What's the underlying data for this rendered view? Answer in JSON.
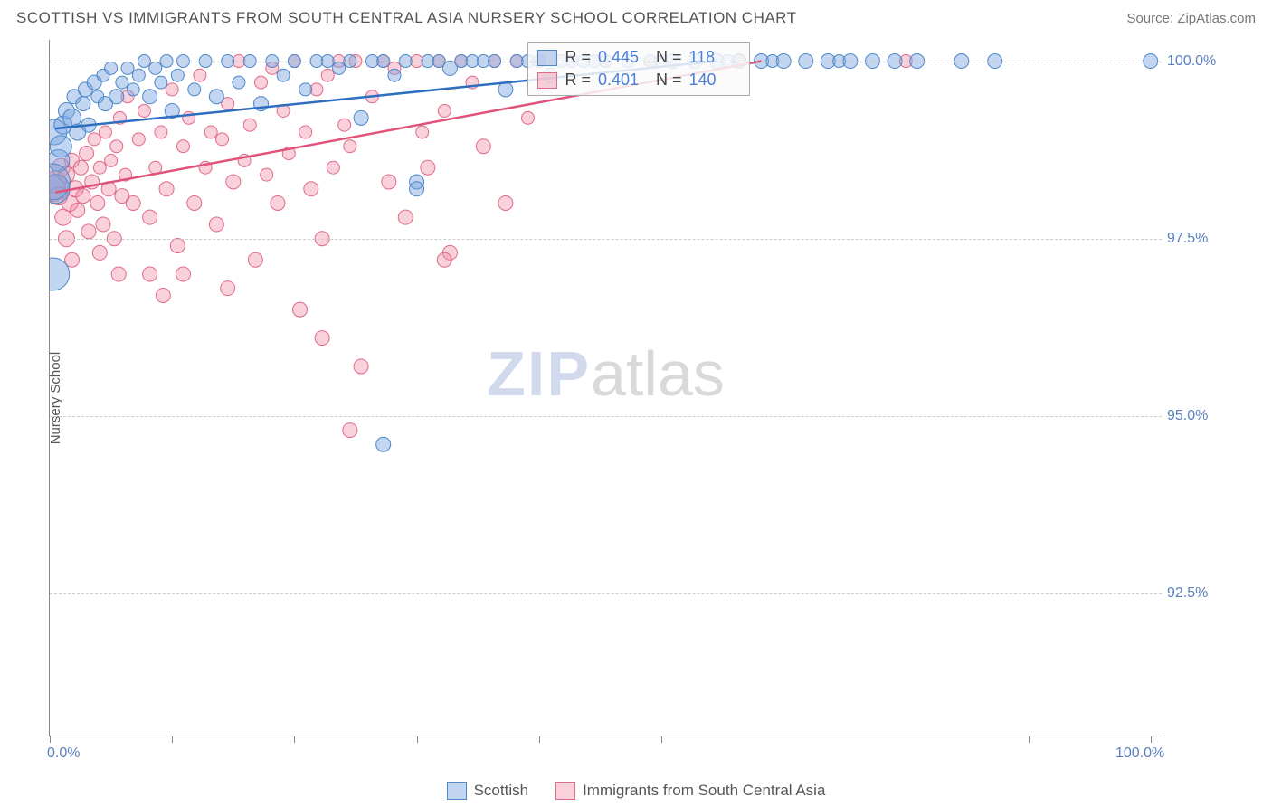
{
  "header": {
    "title": "SCOTTISH VS IMMIGRANTS FROM SOUTH CENTRAL ASIA NURSERY SCHOOL CORRELATION CHART",
    "source": "Source: ZipAtlas.com"
  },
  "axes": {
    "ylabel": "Nursery School",
    "x_min": 0,
    "x_max": 100,
    "y_min": 90.5,
    "y_max": 100.3,
    "y_ticks": [
      92.5,
      95.0,
      97.5,
      100.0
    ],
    "y_tick_labels": [
      "92.5%",
      "95.0%",
      "97.5%",
      "100.0%"
    ],
    "x_ticks": [
      0,
      11,
      22,
      33,
      44,
      55,
      88,
      99
    ],
    "x_left_label": "0.0%",
    "x_right_label": "100.0%",
    "tick_label_color": "#5a7fbf",
    "grid_color": "#cccccc"
  },
  "series": {
    "scottish": {
      "label": "Scottish",
      "fill": "rgba(120,165,225,0.45)",
      "stroke": "#4d87c7",
      "line_color": "#2d6ebf",
      "r_value": "0.445",
      "n_value": "118",
      "trend": {
        "x1": 0.5,
        "y1": 99.05,
        "x2": 60,
        "y2": 100.0
      },
      "points": [
        [
          0.3,
          97.0,
          18
        ],
        [
          0.5,
          98.2,
          16
        ],
        [
          0.4,
          99.0,
          14
        ],
        [
          0.8,
          98.6,
          12
        ],
        [
          1.2,
          99.1,
          10
        ],
        [
          1.0,
          98.8,
          12
        ],
        [
          1.5,
          99.3,
          9
        ],
        [
          2.0,
          99.2,
          10
        ],
        [
          2.2,
          99.5,
          8
        ],
        [
          2.5,
          99.0,
          9
        ],
        [
          3.0,
          99.4,
          8
        ],
        [
          3.2,
          99.6,
          8
        ],
        [
          3.5,
          99.1,
          8
        ],
        [
          4.0,
          99.7,
          8
        ],
        [
          4.3,
          99.5,
          7
        ],
        [
          4.8,
          99.8,
          7
        ],
        [
          5.0,
          99.4,
          8
        ],
        [
          5.5,
          99.9,
          7
        ],
        [
          6.0,
          99.5,
          8
        ],
        [
          6.5,
          99.7,
          7
        ],
        [
          7.0,
          99.9,
          7
        ],
        [
          7.5,
          99.6,
          7
        ],
        [
          8.0,
          99.8,
          7
        ],
        [
          8.5,
          100.0,
          7
        ],
        [
          9.0,
          99.5,
          8
        ],
        [
          9.5,
          99.9,
          7
        ],
        [
          10,
          99.7,
          7
        ],
        [
          10.5,
          100.0,
          7
        ],
        [
          11,
          99.3,
          8
        ],
        [
          11.5,
          99.8,
          7
        ],
        [
          12,
          100.0,
          7
        ],
        [
          13,
          99.6,
          7
        ],
        [
          14,
          100.0,
          7
        ],
        [
          15,
          99.5,
          8
        ],
        [
          16,
          100.0,
          7
        ],
        [
          17,
          99.7,
          7
        ],
        [
          18,
          100.0,
          7
        ],
        [
          19,
          99.4,
          8
        ],
        [
          20,
          100.0,
          7
        ],
        [
          21,
          99.8,
          7
        ],
        [
          22,
          100.0,
          7
        ],
        [
          23,
          99.6,
          7
        ],
        [
          24,
          100.0,
          7
        ],
        [
          25,
          100.0,
          7
        ],
        [
          26,
          99.9,
          7
        ],
        [
          27,
          100.0,
          7
        ],
        [
          28,
          99.2,
          8
        ],
        [
          29,
          100.0,
          7
        ],
        [
          30,
          100.0,
          7
        ],
        [
          31,
          99.8,
          7
        ],
        [
          32,
          100.0,
          7
        ],
        [
          33,
          98.3,
          8
        ],
        [
          34,
          100.0,
          7
        ],
        [
          35,
          100.0,
          7
        ],
        [
          36,
          99.9,
          8
        ],
        [
          37,
          100.0,
          7
        ],
        [
          38,
          100.0,
          7
        ],
        [
          39,
          100.0,
          7
        ],
        [
          40,
          100.0,
          7
        ],
        [
          41,
          99.6,
          8
        ],
        [
          42,
          100.0,
          7
        ],
        [
          43,
          100.0,
          7
        ],
        [
          44,
          100.0,
          7
        ],
        [
          45,
          99.8,
          8
        ],
        [
          46,
          100.0,
          7
        ],
        [
          47,
          100.0,
          7
        ],
        [
          48,
          100.0,
          7
        ],
        [
          49,
          100.0,
          7
        ],
        [
          50,
          100.0,
          7
        ],
        [
          52,
          100.0,
          7
        ],
        [
          54,
          100.0,
          7
        ],
        [
          55,
          100.0,
          7
        ],
        [
          56,
          100.0,
          8
        ],
        [
          58,
          100.0,
          8
        ],
        [
          60,
          100.0,
          8
        ],
        [
          61,
          100.0,
          7
        ],
        [
          62,
          100.0,
          8
        ],
        [
          64,
          100.0,
          8
        ],
        [
          65,
          100.0,
          7
        ],
        [
          66,
          100.0,
          8
        ],
        [
          68,
          100.0,
          8
        ],
        [
          70,
          100.0,
          8
        ],
        [
          71,
          100.0,
          7
        ],
        [
          72,
          100.0,
          8
        ],
        [
          74,
          100.0,
          8
        ],
        [
          76,
          100.0,
          8
        ],
        [
          78,
          100.0,
          8
        ],
        [
          82,
          100.0,
          8
        ],
        [
          85,
          100.0,
          8
        ],
        [
          99,
          100.0,
          8
        ],
        [
          30,
          94.6,
          8
        ],
        [
          33,
          98.2,
          8
        ],
        [
          0.2,
          98.3,
          20
        ]
      ]
    },
    "immigrants": {
      "label": "Immigrants from South Central Asia",
      "fill": "rgba(240,140,165,0.40)",
      "stroke": "#e06a8a",
      "line_color": "#e0527a",
      "r_value": "0.401",
      "n_value": "140",
      "trend": {
        "x1": 0.5,
        "y1": 98.15,
        "x2": 64,
        "y2": 100.0
      },
      "points": [
        [
          0.3,
          98.2,
          14
        ],
        [
          0.5,
          98.3,
          12
        ],
        [
          0.8,
          98.1,
          10
        ],
        [
          1.0,
          98.5,
          10
        ],
        [
          1.2,
          97.8,
          9
        ],
        [
          1.5,
          98.4,
          9
        ],
        [
          1.8,
          98.0,
          9
        ],
        [
          2.0,
          98.6,
          8
        ],
        [
          2.3,
          98.2,
          9
        ],
        [
          2.5,
          97.9,
          8
        ],
        [
          2.8,
          98.5,
          8
        ],
        [
          3.0,
          98.1,
          8
        ],
        [
          3.3,
          98.7,
          8
        ],
        [
          3.5,
          97.6,
          8
        ],
        [
          3.8,
          98.3,
          8
        ],
        [
          4.0,
          98.9,
          7
        ],
        [
          4.3,
          98.0,
          8
        ],
        [
          4.5,
          98.5,
          7
        ],
        [
          4.8,
          97.7,
          8
        ],
        [
          5.0,
          99.0,
          7
        ],
        [
          5.3,
          98.2,
          8
        ],
        [
          5.5,
          98.6,
          7
        ],
        [
          5.8,
          97.5,
          8
        ],
        [
          6.0,
          98.8,
          7
        ],
        [
          6.3,
          99.2,
          7
        ],
        [
          6.5,
          98.1,
          8
        ],
        [
          6.8,
          98.4,
          7
        ],
        [
          7.0,
          99.5,
          7
        ],
        [
          7.5,
          98.0,
          8
        ],
        [
          8.0,
          98.9,
          7
        ],
        [
          8.5,
          99.3,
          7
        ],
        [
          9.0,
          97.8,
          8
        ],
        [
          9.5,
          98.5,
          7
        ],
        [
          10.0,
          99.0,
          7
        ],
        [
          10.5,
          98.2,
          8
        ],
        [
          11.0,
          99.6,
          7
        ],
        [
          11.5,
          97.4,
          8
        ],
        [
          12.0,
          98.8,
          7
        ],
        [
          12.5,
          99.2,
          7
        ],
        [
          13.0,
          98.0,
          8
        ],
        [
          13.5,
          99.8,
          7
        ],
        [
          14.0,
          98.5,
          7
        ],
        [
          14.5,
          99.0,
          7
        ],
        [
          15.0,
          97.7,
          8
        ],
        [
          15.5,
          98.9,
          7
        ],
        [
          16.0,
          99.4,
          7
        ],
        [
          16.5,
          98.3,
          8
        ],
        [
          17.0,
          100.0,
          7
        ],
        [
          17.5,
          98.6,
          7
        ],
        [
          18.0,
          99.1,
          7
        ],
        [
          18.5,
          97.2,
          8
        ],
        [
          19.0,
          99.7,
          7
        ],
        [
          19.5,
          98.4,
          7
        ],
        [
          20.0,
          99.9,
          7
        ],
        [
          20.5,
          98.0,
          8
        ],
        [
          21.0,
          99.3,
          7
        ],
        [
          21.5,
          98.7,
          7
        ],
        [
          22.0,
          100.0,
          7
        ],
        [
          22.5,
          96.5,
          8
        ],
        [
          23.0,
          99.0,
          7
        ],
        [
          23.5,
          98.2,
          8
        ],
        [
          24.0,
          99.6,
          7
        ],
        [
          24.5,
          97.5,
          8
        ],
        [
          25.0,
          99.8,
          7
        ],
        [
          25.5,
          98.5,
          7
        ],
        [
          26.0,
          100.0,
          7
        ],
        [
          26.5,
          99.1,
          7
        ],
        [
          27.0,
          98.8,
          7
        ],
        [
          27.5,
          100.0,
          7
        ],
        [
          28.0,
          95.7,
          8
        ],
        [
          29.0,
          99.5,
          7
        ],
        [
          30.0,
          100.0,
          7
        ],
        [
          30.5,
          98.3,
          8
        ],
        [
          31.0,
          99.9,
          7
        ],
        [
          32.0,
          97.8,
          8
        ],
        [
          33.0,
          100.0,
          7
        ],
        [
          33.5,
          99.0,
          7
        ],
        [
          34.0,
          98.5,
          8
        ],
        [
          35.0,
          100.0,
          7
        ],
        [
          35.5,
          99.3,
          7
        ],
        [
          36.0,
          97.3,
          8
        ],
        [
          37.0,
          100.0,
          7
        ],
        [
          38.0,
          99.7,
          7
        ],
        [
          39.0,
          98.8,
          8
        ],
        [
          40.0,
          100.0,
          7
        ],
        [
          41.0,
          98.0,
          8
        ],
        [
          42.0,
          100.0,
          7
        ],
        [
          43.0,
          99.2,
          7
        ],
        [
          44.0,
          100.0,
          7
        ],
        [
          50.0,
          100.0,
          7
        ],
        [
          54.0,
          100.0,
          7
        ],
        [
          62.0,
          100.0,
          7
        ],
        [
          77.0,
          100.0,
          7
        ],
        [
          4.5,
          97.3,
          8
        ],
        [
          6.2,
          97.0,
          8
        ],
        [
          9.0,
          97.0,
          8
        ],
        [
          10.2,
          96.7,
          8
        ],
        [
          12.0,
          97.0,
          8
        ],
        [
          24.5,
          96.1,
          8
        ],
        [
          27.0,
          94.8,
          8
        ],
        [
          35.5,
          97.2,
          8
        ],
        [
          1.5,
          97.5,
          9
        ],
        [
          2.0,
          97.2,
          8
        ],
        [
          16.0,
          96.8,
          8
        ]
      ]
    }
  },
  "stat_box": {
    "r_label": "R =",
    "n_label": "N ="
  },
  "legend": {
    "scottish_label": "Scottish",
    "immigrants_label": "Immigrants from South Central Asia"
  },
  "watermark": {
    "zip": "ZIP",
    "atlas": "atlas"
  }
}
